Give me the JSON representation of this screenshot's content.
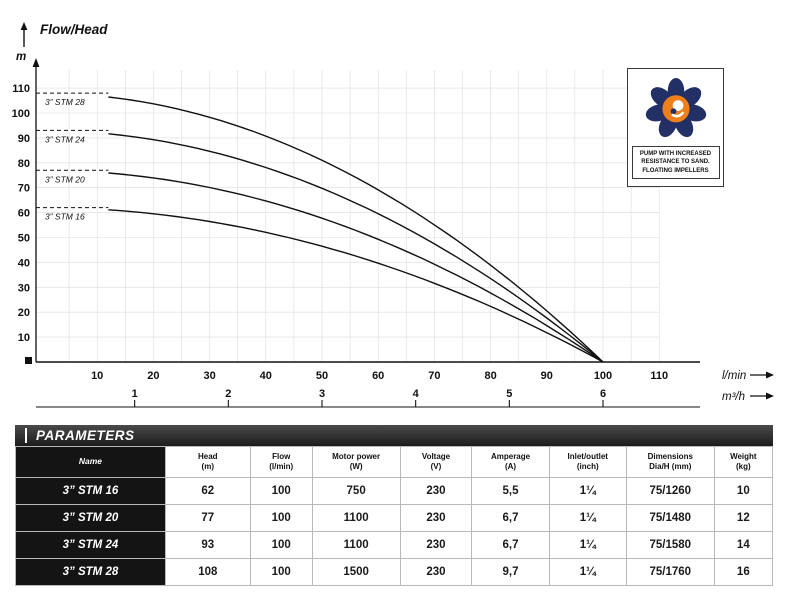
{
  "chart_data": {
    "type": "line",
    "title": "Flow/Head",
    "ylabel": "m",
    "xlabel_primary": "l/min",
    "xlabel_secondary": "m³/h",
    "x_primary_ticks": [
      10,
      20,
      30,
      40,
      50,
      60,
      70,
      80,
      90,
      100,
      110
    ],
    "x_secondary_ticks": [
      1,
      2,
      3,
      4,
      5,
      6
    ],
    "y_ticks": [
      10,
      20,
      30,
      40,
      50,
      60,
      70,
      80,
      90,
      100,
      110
    ],
    "ylim": [
      0,
      115
    ],
    "xlim_lmin": [
      0,
      115
    ],
    "secondary_to_primary_factor": 16.667,
    "grid": true,
    "legend_position": "on-curve-left",
    "series": [
      {
        "name": "3” STM 28",
        "shutoff_head_m": 108,
        "max_flow_lmin": 100,
        "x_lmin": [
          0,
          20,
          40,
          60,
          80,
          100
        ],
        "head_m": [
          108,
          103.7,
          90.7,
          69.1,
          38.9,
          0
        ]
      },
      {
        "name": "3” STM 24",
        "shutoff_head_m": 93,
        "max_flow_lmin": 100,
        "x_lmin": [
          0,
          20,
          40,
          60,
          80,
          100
        ],
        "head_m": [
          93,
          89.3,
          78.1,
          59.5,
          33.5,
          0
        ]
      },
      {
        "name": "3” STM 20",
        "shutoff_head_m": 77,
        "max_flow_lmin": 100,
        "x_lmin": [
          0,
          20,
          40,
          60,
          80,
          100
        ],
        "head_m": [
          77,
          73.9,
          64.7,
          49.3,
          27.7,
          0
        ]
      },
      {
        "name": "3” STM 16",
        "shutoff_head_m": 62,
        "max_flow_lmin": 100,
        "x_lmin": [
          0,
          20,
          40,
          60,
          80,
          100
        ],
        "head_m": [
          62,
          59.5,
          52.1,
          39.7,
          22.3,
          0
        ]
      }
    ]
  },
  "badge": {
    "lines": [
      "PUMP WITH INCREASED",
      "RESISTANCE TO SAND.",
      "FLOATING IMPELLERS"
    ]
  },
  "parameters": {
    "title": "PARAMETERS",
    "columns": [
      {
        "label": "Name",
        "unit": ""
      },
      {
        "label": "Head",
        "unit": "(m)"
      },
      {
        "label": "Flow",
        "unit": "(l/min)"
      },
      {
        "label": "Motor power",
        "unit": "(W)"
      },
      {
        "label": "Voltage",
        "unit": "(V)"
      },
      {
        "label": "Amperage",
        "unit": "(A)"
      },
      {
        "label": "Inlet/outlet",
        "unit": "(inch)"
      },
      {
        "label": "Dimensions",
        "unit": "Dia/H (mm)"
      },
      {
        "label": "Weight",
        "unit": "(kg)"
      }
    ],
    "rows": [
      {
        "name": "3” STM 16",
        "values": [
          "62",
          "100",
          "750",
          "230",
          "5,5",
          "1¼",
          "75/1260",
          "10"
        ]
      },
      {
        "name": "3” STM 20",
        "values": [
          "77",
          "100",
          "1100",
          "230",
          "6,7",
          "1¼",
          "75/1480",
          "12"
        ]
      },
      {
        "name": "3” STM 24",
        "values": [
          "93",
          "100",
          "1100",
          "230",
          "6,7",
          "1¼",
          "75/1580",
          "14"
        ]
      },
      {
        "name": "3” STM 28",
        "values": [
          "108",
          "100",
          "1500",
          "230",
          "9,7",
          "1¼",
          "75/1760",
          "16"
        ]
      }
    ]
  }
}
